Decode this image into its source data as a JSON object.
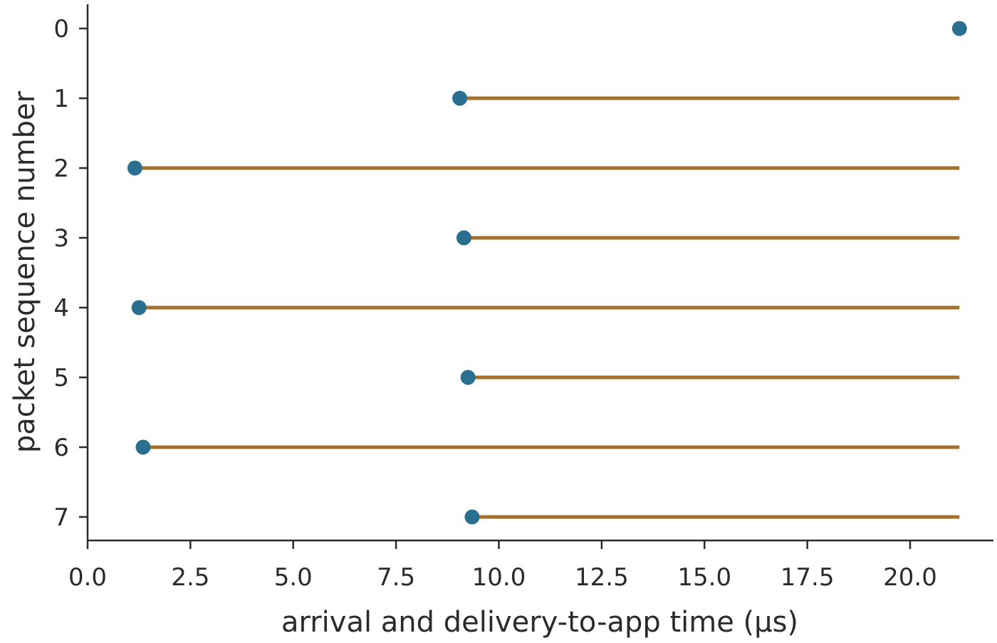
{
  "chart_data": {
    "type": "scatter",
    "xlabel": "arrival and delivery-to-app time (μs)",
    "ylabel": "packet sequence number",
    "xlim": [
      0,
      22
    ],
    "ylim": [
      7.35,
      -0.35
    ],
    "x_ticks": [
      "0.0",
      "2.5",
      "5.0",
      "7.5",
      "10.0",
      "12.5",
      "15.0",
      "17.5",
      "20.0"
    ],
    "x_tick_values": [
      0,
      2.5,
      5,
      7.5,
      10,
      12.5,
      15,
      17.5,
      20
    ],
    "y_ticks": [
      "0",
      "1",
      "2",
      "3",
      "4",
      "5",
      "6",
      "7"
    ],
    "y_tick_values": [
      0,
      1,
      2,
      3,
      4,
      5,
      6,
      7
    ],
    "series": [
      {
        "marker": "dot",
        "color": "#2a6f8f",
        "points": [
          {
            "seq": 0,
            "arrival": 21.2
          },
          {
            "seq": 1,
            "arrival": 9.05
          },
          {
            "seq": 2,
            "arrival": 1.15
          },
          {
            "seq": 3,
            "arrival": 9.15
          },
          {
            "seq": 4,
            "arrival": 1.25
          },
          {
            "seq": 5,
            "arrival": 9.25
          },
          {
            "seq": 6,
            "arrival": 1.35
          },
          {
            "seq": 7,
            "arrival": 9.35
          }
        ]
      },
      {
        "marker": "line",
        "color": "#a3712b",
        "segments": [
          {
            "seq": 1,
            "start": 9.05,
            "end": 21.2
          },
          {
            "seq": 2,
            "start": 1.15,
            "end": 21.2
          },
          {
            "seq": 3,
            "start": 9.15,
            "end": 21.2
          },
          {
            "seq": 4,
            "start": 1.25,
            "end": 21.2
          },
          {
            "seq": 5,
            "start": 9.25,
            "end": 21.2
          },
          {
            "seq": 6,
            "start": 1.35,
            "end": 21.2
          },
          {
            "seq": 7,
            "start": 9.35,
            "end": 21.2
          }
        ]
      }
    ],
    "grid": false,
    "legend": "none"
  }
}
